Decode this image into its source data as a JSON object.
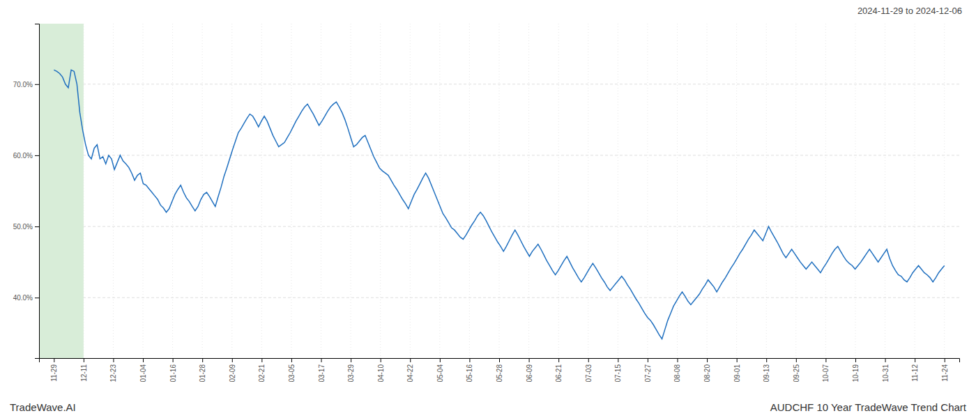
{
  "chart_data": {
    "type": "line",
    "title": "AUDCHF 10 Year TradeWave Trend Chart",
    "subtitle": "2024-11-29 to 2024-12-06",
    "annotations": [
      "TradeWave.AI"
    ],
    "color": "#1f6fbf",
    "grid": true,
    "highlight_range": [
      -0.5,
      1
    ],
    "highlight_color": "#d8edd8",
    "xlim": [
      -0.5,
      30.5
    ],
    "xticks": [
      {
        "value": 0,
        "label": "11-29"
      },
      {
        "value": 1,
        "label": "12-11"
      },
      {
        "value": 2,
        "label": "12-23"
      },
      {
        "value": 3,
        "label": "01-04"
      },
      {
        "value": 4,
        "label": "01-16"
      },
      {
        "value": 5,
        "label": "01-28"
      },
      {
        "value": 6,
        "label": "02-09"
      },
      {
        "value": 7,
        "label": "02-21"
      },
      {
        "value": 8,
        "label": "03-05"
      },
      {
        "value": 9,
        "label": "03-17"
      },
      {
        "value": 10,
        "label": "03-29"
      },
      {
        "value": 11,
        "label": "04-10"
      },
      {
        "value": 12,
        "label": "04-22"
      },
      {
        "value": 13,
        "label": "05-04"
      },
      {
        "value": 14,
        "label": "05-16"
      },
      {
        "value": 15,
        "label": "05-28"
      },
      {
        "value": 16,
        "label": "06-09"
      },
      {
        "value": 17,
        "label": "06-21"
      },
      {
        "value": 18,
        "label": "07-03"
      },
      {
        "value": 19,
        "label": "07-15"
      },
      {
        "value": 20,
        "label": "07-27"
      },
      {
        "value": 21,
        "label": "08-08"
      },
      {
        "value": 22,
        "label": "08-20"
      },
      {
        "value": 23,
        "label": "09-01"
      },
      {
        "value": 24,
        "label": "09-13"
      },
      {
        "value": 25,
        "label": "09-25"
      },
      {
        "value": 26,
        "label": "10-07"
      },
      {
        "value": 27,
        "label": "10-19"
      },
      {
        "value": 28,
        "label": "10-31"
      },
      {
        "value": 29,
        "label": "11-12"
      },
      {
        "value": 30,
        "label": "11-24"
      }
    ],
    "ylim": [
      0.315,
      0.785
    ],
    "yticks": [
      {
        "value": 0.4,
        "label": "40.0%"
      },
      {
        "value": 0.5,
        "label": "50.0%"
      },
      {
        "value": 0.6,
        "label": "60.0%"
      },
      {
        "value": 0.7,
        "label": "70.0%"
      }
    ],
    "values": [
      0.72,
      0.718,
      0.715,
      0.71,
      0.7,
      0.695,
      0.72,
      0.718,
      0.7,
      0.66,
      0.635,
      0.615,
      0.6,
      0.595,
      0.61,
      0.615,
      0.595,
      0.598,
      0.588,
      0.6,
      0.595,
      0.58,
      0.59,
      0.6,
      0.592,
      0.588,
      0.583,
      0.575,
      0.565,
      0.572,
      0.575,
      0.56,
      0.558,
      0.553,
      0.548,
      0.543,
      0.538,
      0.53,
      0.526,
      0.52,
      0.525,
      0.535,
      0.545,
      0.552,
      0.558,
      0.548,
      0.54,
      0.535,
      0.528,
      0.522,
      0.528,
      0.538,
      0.545,
      0.548,
      0.542,
      0.535,
      0.528,
      0.542,
      0.555,
      0.57,
      0.582,
      0.595,
      0.608,
      0.62,
      0.632,
      0.638,
      0.645,
      0.652,
      0.658,
      0.655,
      0.648,
      0.64,
      0.648,
      0.655,
      0.648,
      0.638,
      0.628,
      0.62,
      0.612,
      0.615,
      0.618,
      0.625,
      0.632,
      0.64,
      0.648,
      0.655,
      0.662,
      0.668,
      0.672,
      0.665,
      0.658,
      0.65,
      0.642,
      0.648,
      0.655,
      0.662,
      0.668,
      0.672,
      0.675,
      0.668,
      0.66,
      0.65,
      0.638,
      0.625,
      0.612,
      0.615,
      0.62,
      0.625,
      0.628,
      0.618,
      0.608,
      0.598,
      0.59,
      0.582,
      0.578,
      0.575,
      0.572,
      0.565,
      0.558,
      0.552,
      0.545,
      0.538,
      0.532,
      0.525,
      0.535,
      0.545,
      0.552,
      0.56,
      0.568,
      0.575,
      0.568,
      0.558,
      0.548,
      0.538,
      0.528,
      0.518,
      0.512,
      0.505,
      0.498,
      0.495,
      0.49,
      0.485,
      0.482,
      0.488,
      0.495,
      0.502,
      0.508,
      0.515,
      0.52,
      0.515,
      0.508,
      0.5,
      0.492,
      0.485,
      0.478,
      0.472,
      0.465,
      0.472,
      0.48,
      0.488,
      0.495,
      0.488,
      0.48,
      0.472,
      0.465,
      0.458,
      0.465,
      0.47,
      0.475,
      0.468,
      0.46,
      0.452,
      0.445,
      0.438,
      0.432,
      0.438,
      0.445,
      0.452,
      0.458,
      0.45,
      0.442,
      0.435,
      0.428,
      0.422,
      0.428,
      0.435,
      0.442,
      0.448,
      0.442,
      0.435,
      0.428,
      0.422,
      0.415,
      0.41,
      0.415,
      0.42,
      0.425,
      0.43,
      0.425,
      0.418,
      0.412,
      0.405,
      0.398,
      0.392,
      0.385,
      0.378,
      0.372,
      0.368,
      0.362,
      0.355,
      0.348,
      0.342,
      0.355,
      0.368,
      0.378,
      0.388,
      0.395,
      0.402,
      0.408,
      0.402,
      0.395,
      0.39,
      0.395,
      0.4,
      0.405,
      0.412,
      0.418,
      0.425,
      0.42,
      0.415,
      0.408,
      0.415,
      0.422,
      0.428,
      0.435,
      0.442,
      0.448,
      0.455,
      0.462,
      0.468,
      0.475,
      0.482,
      0.488,
      0.495,
      0.49,
      0.485,
      0.48,
      0.49,
      0.5,
      0.492,
      0.485,
      0.478,
      0.47,
      0.462,
      0.456,
      0.462,
      0.468,
      0.462,
      0.456,
      0.45,
      0.445,
      0.44,
      0.445,
      0.45,
      0.445,
      0.44,
      0.435,
      0.442,
      0.448,
      0.455,
      0.462,
      0.468,
      0.472,
      0.465,
      0.458,
      0.452,
      0.448,
      0.445,
      0.44,
      0.445,
      0.45,
      0.456,
      0.462,
      0.468,
      0.462,
      0.456,
      0.45,
      0.456,
      0.462,
      0.468,
      0.455,
      0.445,
      0.438,
      0.432,
      0.43,
      0.425,
      0.422,
      0.428,
      0.435,
      0.44,
      0.445,
      0.44,
      0.435,
      0.432,
      0.428,
      0.422,
      0.428,
      0.435,
      0.44,
      0.445
    ]
  }
}
